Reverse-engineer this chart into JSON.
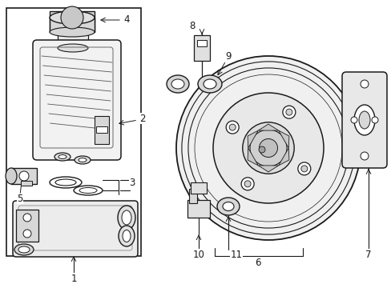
{
  "bg_color": "#ffffff",
  "line_color": "#1a1a1a",
  "lw": 1.0,
  "fig_width": 4.89,
  "fig_height": 3.6,
  "dpi": 100
}
